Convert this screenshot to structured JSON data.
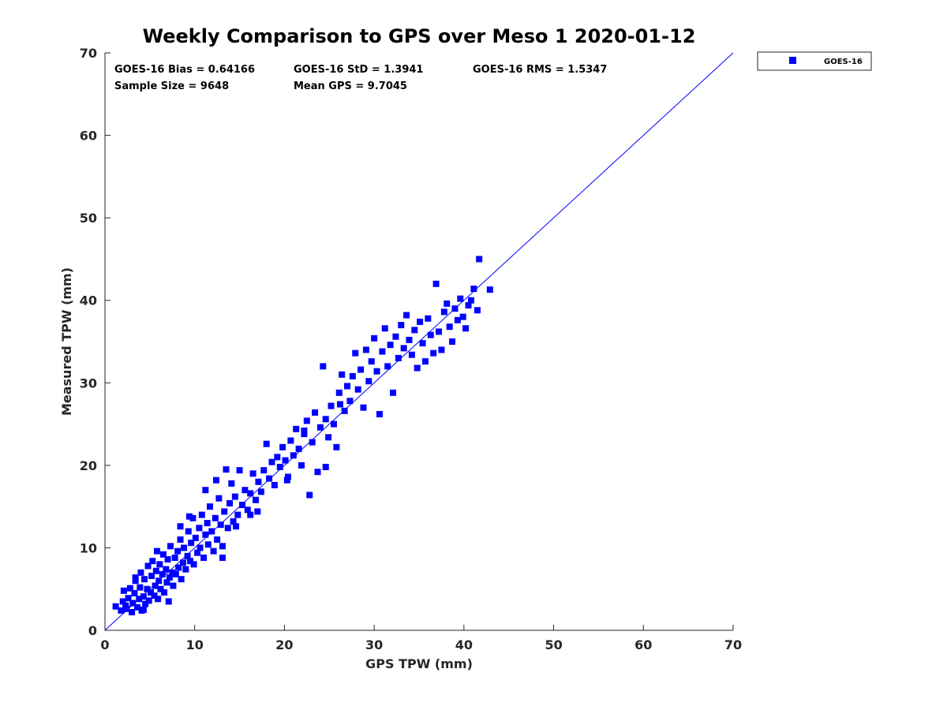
{
  "chart_data": {
    "type": "scatter",
    "title": "Weekly Comparison to GPS over Meso 1 2020-01-12",
    "xlabel": "GPS TPW (mm)",
    "ylabel": "Measured TPW (mm)",
    "xlim": [
      0,
      70
    ],
    "ylim": [
      0,
      70
    ],
    "xticks": [
      "0",
      "10",
      "20",
      "30",
      "40",
      "50",
      "60",
      "70"
    ],
    "yticks": [
      "0",
      "10",
      "20",
      "30",
      "40",
      "50",
      "60",
      "70"
    ],
    "grid": false,
    "legend": {
      "placement": "outside-top-right",
      "entries": [
        "GOES-16"
      ]
    },
    "reference_line": {
      "from": [
        0,
        0
      ],
      "to": [
        70,
        70
      ]
    },
    "stats": {
      "bias": "GOES-16 Bias = 0.64166",
      "std": "GOES-16 StD = 1.3941",
      "rms": "GOES-16 RMS = 1.5347",
      "sample_size": "Sample Size = 9648",
      "mean_gps": "Mean GPS = 9.7045"
    },
    "series": [
      {
        "name": "GOES-16",
        "color": "#0000ff",
        "marker": "square",
        "points": [
          [
            1.2,
            2.9
          ],
          [
            1.8,
            2.4
          ],
          [
            2.0,
            3.5
          ],
          [
            2.1,
            4.8
          ],
          [
            2.4,
            2.6
          ],
          [
            2.6,
            3.9
          ],
          [
            2.8,
            5.1
          ],
          [
            3.0,
            2.2
          ],
          [
            3.1,
            3.3
          ],
          [
            3.3,
            4.5
          ],
          [
            3.4,
            6.0
          ],
          [
            3.6,
            2.8
          ],
          [
            3.8,
            3.8
          ],
          [
            3.9,
            5.2
          ],
          [
            4.0,
            7.0
          ],
          [
            4.1,
            2.4
          ],
          [
            4.3,
            4.1
          ],
          [
            4.4,
            6.2
          ],
          [
            4.5,
            3.2
          ],
          [
            4.7,
            5.0
          ],
          [
            4.8,
            7.8
          ],
          [
            4.9,
            3.6
          ],
          [
            5.1,
            4.6
          ],
          [
            5.2,
            6.6
          ],
          [
            5.3,
            8.4
          ],
          [
            5.5,
            4.2
          ],
          [
            5.6,
            5.4
          ],
          [
            5.7,
            7.2
          ],
          [
            5.9,
            3.8
          ],
          [
            6.0,
            6.0
          ],
          [
            6.1,
            8.0
          ],
          [
            6.2,
            5.0
          ],
          [
            6.4,
            6.8
          ],
          [
            6.5,
            9.2
          ],
          [
            6.6,
            4.6
          ],
          [
            6.8,
            7.4
          ],
          [
            6.9,
            5.8
          ],
          [
            7.0,
            8.6
          ],
          [
            7.2,
            6.4
          ],
          [
            7.3,
            10.2
          ],
          [
            7.5,
            7.0
          ],
          [
            7.6,
            5.4
          ],
          [
            7.8,
            8.8
          ],
          [
            7.9,
            6.8
          ],
          [
            8.1,
            9.6
          ],
          [
            8.2,
            7.6
          ],
          [
            8.4,
            11.0
          ],
          [
            8.5,
            6.2
          ],
          [
            8.7,
            8.2
          ],
          [
            8.8,
            10.0
          ],
          [
            9.0,
            7.4
          ],
          [
            9.2,
            9.0
          ],
          [
            9.3,
            12.0
          ],
          [
            9.5,
            8.4
          ],
          [
            9.6,
            10.6
          ],
          [
            9.8,
            13.6
          ],
          [
            9.9,
            8.0
          ],
          [
            10.1,
            11.2
          ],
          [
            10.3,
            9.4
          ],
          [
            10.5,
            12.4
          ],
          [
            10.6,
            10.0
          ],
          [
            10.8,
            14.0
          ],
          [
            11.0,
            8.8
          ],
          [
            11.2,
            11.6
          ],
          [
            11.4,
            13.0
          ],
          [
            11.5,
            10.4
          ],
          [
            11.7,
            15.0
          ],
          [
            11.9,
            12.0
          ],
          [
            12.1,
            9.6
          ],
          [
            12.3,
            13.6
          ],
          [
            12.5,
            11.0
          ],
          [
            12.7,
            16.0
          ],
          [
            12.9,
            12.8
          ],
          [
            13.1,
            10.2
          ],
          [
            13.3,
            14.4
          ],
          [
            13.5,
            19.5
          ],
          [
            13.7,
            12.4
          ],
          [
            13.9,
            15.4
          ],
          [
            14.1,
            17.8
          ],
          [
            14.3,
            13.2
          ],
          [
            14.5,
            16.2
          ],
          [
            14.8,
            14.0
          ],
          [
            15.0,
            19.4
          ],
          [
            15.3,
            15.2
          ],
          [
            15.6,
            17.0
          ],
          [
            15.9,
            14.6
          ],
          [
            16.2,
            16.6
          ],
          [
            16.5,
            19.0
          ],
          [
            16.8,
            15.8
          ],
          [
            17.1,
            18.0
          ],
          [
            17.4,
            16.8
          ],
          [
            17.7,
            19.4
          ],
          [
            18.0,
            22.6
          ],
          [
            18.3,
            18.4
          ],
          [
            18.6,
            20.4
          ],
          [
            18.9,
            17.6
          ],
          [
            19.2,
            21.0
          ],
          [
            19.5,
            19.8
          ],
          [
            19.8,
            22.2
          ],
          [
            20.1,
            20.6
          ],
          [
            20.4,
            18.6
          ],
          [
            20.7,
            23.0
          ],
          [
            21.0,
            21.2
          ],
          [
            21.3,
            24.4
          ],
          [
            21.6,
            22.0
          ],
          [
            21.9,
            20.0
          ],
          [
            22.2,
            23.8
          ],
          [
            22.5,
            25.4
          ],
          [
            22.8,
            16.4
          ],
          [
            23.1,
            22.8
          ],
          [
            23.4,
            26.4
          ],
          [
            23.7,
            19.2
          ],
          [
            24.0,
            24.6
          ],
          [
            24.3,
            32.0
          ],
          [
            24.6,
            25.6
          ],
          [
            24.9,
            23.4
          ],
          [
            25.2,
            27.2
          ],
          [
            25.5,
            25.0
          ],
          [
            25.8,
            22.2
          ],
          [
            26.1,
            28.8
          ],
          [
            26.4,
            31.0
          ],
          [
            26.7,
            26.6
          ],
          [
            27.0,
            29.6
          ],
          [
            27.3,
            27.8
          ],
          [
            27.6,
            30.8
          ],
          [
            27.9,
            33.6
          ],
          [
            28.2,
            29.2
          ],
          [
            28.5,
            31.6
          ],
          [
            28.8,
            27.0
          ],
          [
            29.1,
            34.0
          ],
          [
            29.4,
            30.2
          ],
          [
            29.7,
            32.6
          ],
          [
            30.0,
            35.4
          ],
          [
            30.3,
            31.4
          ],
          [
            30.6,
            26.2
          ],
          [
            30.9,
            33.8
          ],
          [
            31.2,
            36.6
          ],
          [
            31.5,
            32.0
          ],
          [
            31.8,
            34.6
          ],
          [
            32.1,
            28.8
          ],
          [
            32.4,
            35.6
          ],
          [
            32.7,
            33.0
          ],
          [
            33.0,
            37.0
          ],
          [
            33.3,
            34.2
          ],
          [
            33.6,
            38.2
          ],
          [
            33.9,
            35.2
          ],
          [
            34.2,
            33.4
          ],
          [
            34.5,
            36.4
          ],
          [
            34.8,
            31.8
          ],
          [
            35.1,
            37.4
          ],
          [
            35.4,
            34.8
          ],
          [
            35.7,
            32.6
          ],
          [
            36.0,
            37.8
          ],
          [
            36.3,
            35.8
          ],
          [
            36.6,
            33.6
          ],
          [
            36.9,
            42.0
          ],
          [
            37.2,
            36.2
          ],
          [
            37.5,
            34.0
          ],
          [
            37.8,
            38.6
          ],
          [
            38.1,
            39.6
          ],
          [
            38.4,
            36.8
          ],
          [
            38.7,
            35.0
          ],
          [
            39.0,
            39.0
          ],
          [
            39.3,
            37.6
          ],
          [
            39.6,
            40.2
          ],
          [
            39.9,
            38.0
          ],
          [
            40.2,
            36.6
          ],
          [
            40.5,
            39.4
          ],
          [
            40.8,
            40.0
          ],
          [
            41.1,
            41.4
          ],
          [
            41.5,
            38.8
          ],
          [
            41.7,
            45.0
          ],
          [
            42.9,
            41.3
          ],
          [
            22.2,
            24.2
          ],
          [
            26.2,
            27.4
          ],
          [
            24.6,
            19.8
          ],
          [
            20.3,
            18.2
          ],
          [
            17.0,
            14.4
          ],
          [
            13.1,
            8.8
          ],
          [
            16.2,
            14.0
          ],
          [
            9.4,
            13.8
          ],
          [
            7.1,
            3.5
          ],
          [
            4.3,
            2.5
          ],
          [
            3.4,
            6.4
          ],
          [
            2.3,
            3.0
          ],
          [
            5.8,
            9.6
          ],
          [
            8.4,
            12.6
          ],
          [
            11.2,
            17.0
          ],
          [
            12.4,
            18.2
          ],
          [
            14.6,
            12.6
          ]
        ]
      }
    ]
  }
}
